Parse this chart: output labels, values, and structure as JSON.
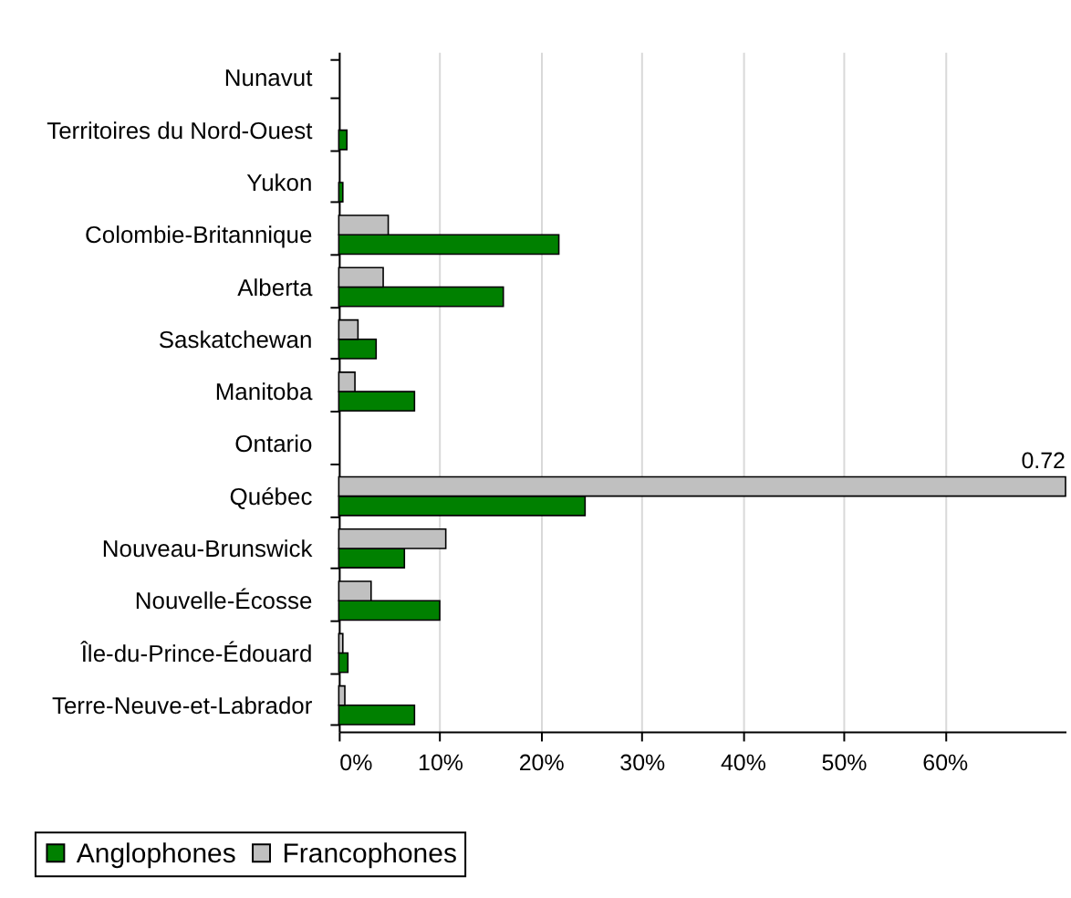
{
  "chart_data": {
    "type": "bar",
    "orientation": "horizontal",
    "categories": [
      "Nunavut",
      "Territoires du Nord-Ouest",
      "Yukon",
      "Colombie-Britannique",
      "Alberta",
      "Saskatchewan",
      "Manitoba",
      "Ontario",
      "Québec",
      "Nouveau-Brunswick",
      "Nouvelle-Écosse",
      "Île-du-Prince-Édouard",
      "Terre-Neuve-et-Labrador"
    ],
    "series": [
      {
        "name": "Anglophones",
        "color": "#008000",
        "values": [
          null,
          0.008,
          0.004,
          0.218,
          0.163,
          0.037,
          0.075,
          null,
          0.244,
          0.065,
          0.1,
          0.009,
          0.075
        ]
      },
      {
        "name": "Francophones",
        "color": "#c0c0c0",
        "values": [
          null,
          null,
          null,
          0.049,
          0.044,
          0.019,
          0.016,
          null,
          0.72,
          0.106,
          0.032,
          0.004,
          0.006
        ],
        "value_labels": [
          null,
          null,
          null,
          null,
          null,
          null,
          null,
          null,
          "0.72",
          null,
          null,
          null,
          null
        ]
      }
    ],
    "xlim": [
      0,
      0.72
    ],
    "xticks": [
      {
        "value": 0,
        "label": "0%"
      },
      {
        "value": 0.1,
        "label": "10%"
      },
      {
        "value": 0.2,
        "label": "20%"
      },
      {
        "value": 0.3,
        "label": "30%"
      },
      {
        "value": 0.4,
        "label": "40%"
      },
      {
        "value": 0.5,
        "label": "50%"
      },
      {
        "value": 0.6,
        "label": "60%"
      }
    ],
    "grid": "x",
    "legend": "bottom"
  }
}
